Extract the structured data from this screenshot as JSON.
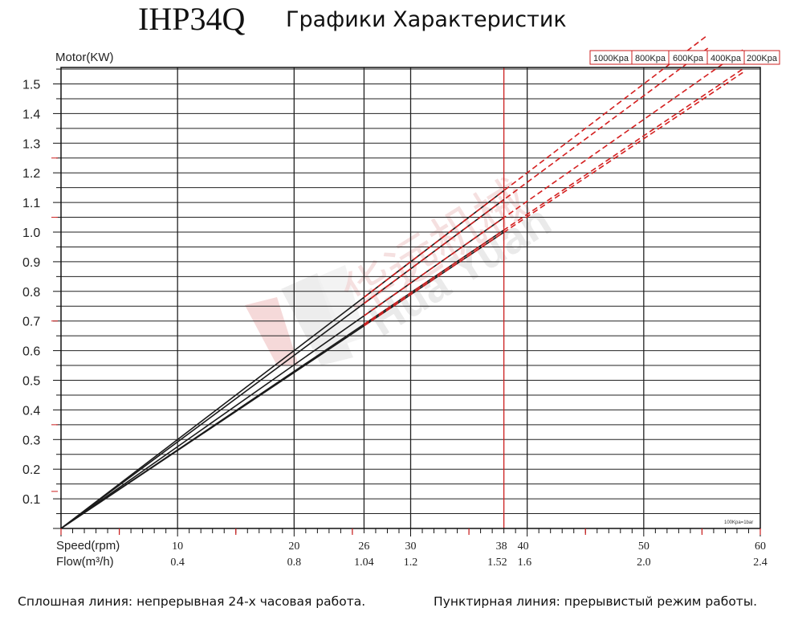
{
  "title": {
    "model": "IHP34Q",
    "subtitle": "Графики Характеристик"
  },
  "watermark": {
    "text": "华远机械",
    "subtext": "Hua Yuan"
  },
  "chart_data": {
    "type": "line",
    "ylabel": "Motor(KW)",
    "ylim": [
      0,
      1.6
    ],
    "yticks": [
      "0.1",
      "0.2",
      "0.3",
      "0.4",
      "0.5",
      "0.6",
      "0.7",
      "0.8",
      "0.9",
      "1.0",
      "1.1",
      "1.2",
      "1.3",
      "1.4",
      "1.5"
    ],
    "x_rows": [
      {
        "label": "Speed(rpm)",
        "ticks": [
          {
            "x": 10,
            "label": "10"
          },
          {
            "x": 20,
            "label": "20"
          },
          {
            "x": 26,
            "label": "26"
          },
          {
            "x": 30,
            "label": "30"
          },
          {
            "x": 38,
            "label": "38"
          },
          {
            "x": 40,
            "label": "40"
          },
          {
            "x": 50,
            "label": "50"
          },
          {
            "x": 60,
            "label": "60"
          }
        ]
      },
      {
        "label": "Flow(m³/h)",
        "ticks": [
          {
            "x": 10,
            "label": "0.4"
          },
          {
            "x": 20,
            "label": "0.8"
          },
          {
            "x": 26,
            "label": "1.04"
          },
          {
            "x": 30,
            "label": "1.2"
          },
          {
            "x": 38,
            "label": "1.52"
          },
          {
            "x": 40,
            "label": "1.6"
          },
          {
            "x": 50,
            "label": "2.0"
          },
          {
            "x": 60,
            "label": "2.4"
          }
        ]
      }
    ],
    "xlim": [
      0,
      60
    ],
    "vertical_lines_black": [
      10,
      20,
      26,
      30,
      40,
      50
    ],
    "vertical_line_red": 38,
    "continuous_end": 38,
    "series": [
      {
        "name": "1000Kpa",
        "slope_kw_per_rpm": 0.03,
        "dashed_end": 55.5
      },
      {
        "name": "800Kpa",
        "slope_kw_per_rpm": 0.0292,
        "dashed_end": 55.5
      },
      {
        "name": "600Kpa",
        "slope_kw_per_rpm": 0.0276,
        "dashed_end": 58.5
      },
      {
        "name": "400Kpa",
        "slope_kw_per_rpm": 0.0265,
        "dashed_end": 58.5
      },
      {
        "name": "200Kpa",
        "slope_kw_per_rpm": 0.0263,
        "dashed_end": 58.5
      }
    ],
    "note": "100Kpa=1bar",
    "colors": {
      "solid": "#1a1a1a",
      "dashed": "#d42020",
      "grid": "#222222",
      "redline": "#cc1f1f"
    },
    "grid": true,
    "legend_position": "top-right"
  },
  "footer": {
    "left": "Сплошная линия: непрерывная 24-х часовая работа.",
    "right": "Пунктирная линия: прерывистый режим работы."
  }
}
